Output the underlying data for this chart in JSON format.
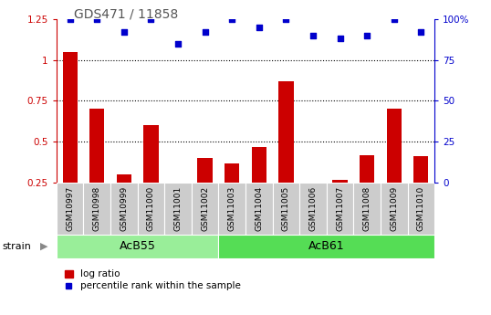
{
  "title": "GDS471 / 11858",
  "categories": [
    "GSM10997",
    "GSM10998",
    "GSM10999",
    "GSM11000",
    "GSM11001",
    "GSM11002",
    "GSM11003",
    "GSM11004",
    "GSM11005",
    "GSM11006",
    "GSM11007",
    "GSM11008",
    "GSM11009",
    "GSM11010"
  ],
  "log_ratio": [
    1.05,
    0.7,
    0.3,
    0.6,
    0.22,
    0.4,
    0.37,
    0.47,
    0.87,
    0.22,
    0.27,
    0.42,
    0.7,
    0.41
  ],
  "percentile_rank": [
    100,
    100,
    92,
    100,
    85,
    92,
    100,
    95,
    100,
    90,
    88,
    90,
    100,
    92
  ],
  "bar_color": "#cc0000",
  "dot_color": "#0000cc",
  "ylim_left": [
    0.25,
    1.25
  ],
  "ylim_right": [
    0,
    100
  ],
  "yticks_left": [
    0.25,
    0.5,
    0.75,
    1.0,
    1.25
  ],
  "yticks_right": [
    0,
    25,
    50,
    75,
    100
  ],
  "dotted_lines": [
    0.5,
    0.75,
    1.0
  ],
  "groups": [
    {
      "label": "AcB55",
      "start": 0,
      "end": 5,
      "color": "#99ee99"
    },
    {
      "label": "AcB61",
      "start": 6,
      "end": 13,
      "color": "#55dd55"
    }
  ],
  "xcell_color": "#cccccc",
  "group_header": "strain",
  "legend_bar_label": "log ratio",
  "legend_dot_label": "percentile rank within the sample",
  "bg_color": "#ffffff",
  "title_color": "#555555",
  "left_axis_color": "#cc0000",
  "right_axis_color": "#0000cc",
  "bar_bottom": 0.25
}
